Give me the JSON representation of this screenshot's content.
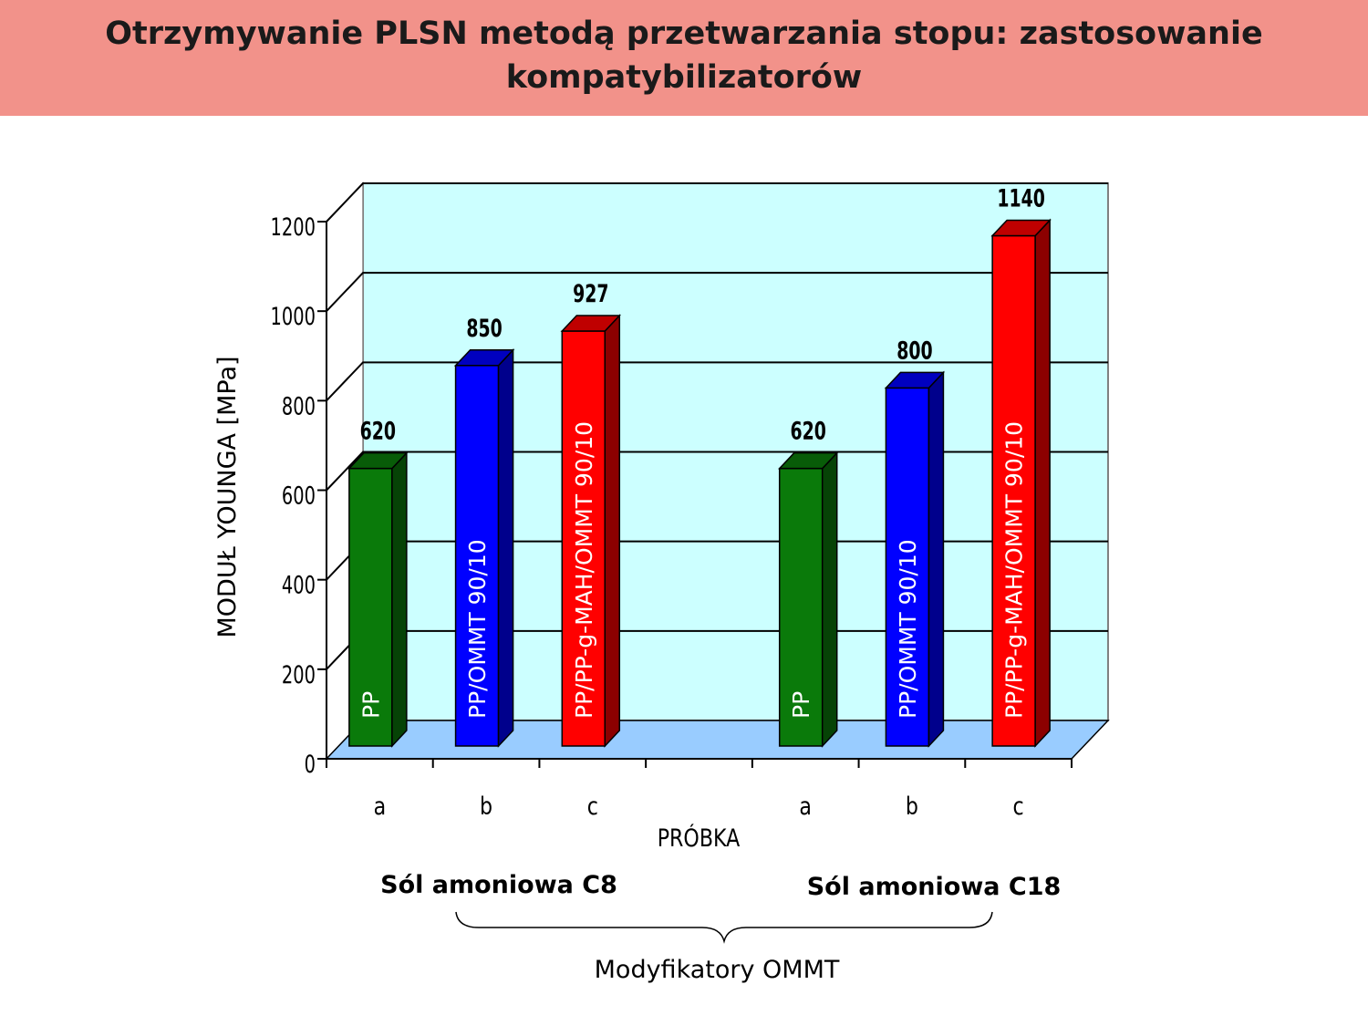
{
  "slide": {
    "title": "Otrzymywanie PLSN metodą przetwarzania stopu: zastosowanie kompatybilizatorów"
  },
  "chart_data": {
    "type": "bar",
    "ylabel": "MODUŁ YOUNGA  [MPa]",
    "xlabel": "PRÓBKA",
    "ylim": [
      0,
      1200
    ],
    "yticks": [
      0,
      200,
      400,
      600,
      800,
      1000,
      1200
    ],
    "grid": true,
    "groups": [
      {
        "name": "Sól amoniowa C8",
        "bars": [
          {
            "category": "a",
            "label": "PP",
            "value": 620,
            "value_label": "620",
            "color": "#0a7a0a"
          },
          {
            "category": "b",
            "label": "PP/OMMT 90/10",
            "value": 850,
            "value_label": "850",
            "color": "#0000ff"
          },
          {
            "category": "c",
            "label": "PP/PP-g-MAH/OMMT 90/10",
            "value": 927,
            "value_label": "927",
            "color": "#ff0000"
          }
        ]
      },
      {
        "name": "Sól amoniowa C18",
        "bars": [
          {
            "category": "a",
            "label": "PP",
            "value": 620,
            "value_label": "620",
            "color": "#0a7a0a"
          },
          {
            "category": "b",
            "label": "PP/OMMT 90/10",
            "value": 800,
            "value_label": "800",
            "color": "#0000ff"
          },
          {
            "category": "c",
            "label": "PP/PP-g-MAH/OMMT 90/10",
            "value": 1140,
            "value_label": "1140",
            "color": "#ff0000"
          }
        ]
      }
    ],
    "annotation": "Modyfikatory OMMT",
    "colors": {
      "wall": "#ccffff",
      "floor": "#99ccff"
    }
  }
}
